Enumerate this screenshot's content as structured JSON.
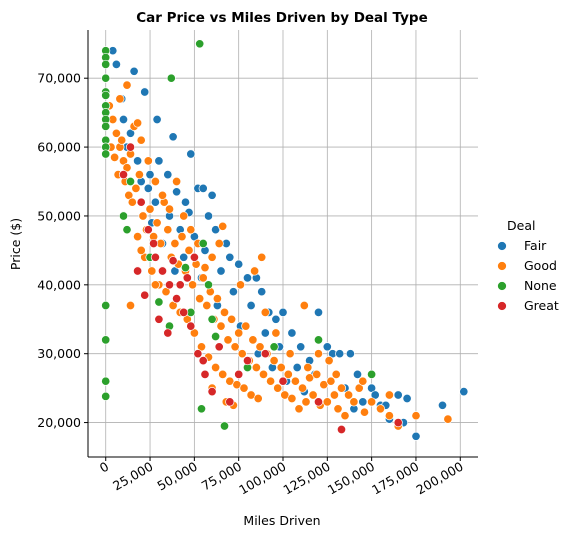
{
  "chart_data": {
    "type": "scatter",
    "title": "Car Price vs Miles Driven by Deal Type",
    "xlabel": "Miles Driven",
    "ylabel": "Price ($)",
    "xlim": [
      -10000,
      210000
    ],
    "ylim": [
      15000,
      77000
    ],
    "x_ticks": [
      0,
      25000,
      50000,
      75000,
      100000,
      125000,
      150000,
      175000,
      200000
    ],
    "x_tick_labels": [
      "0",
      "25,000",
      "50,000",
      "75,000",
      "100,000",
      "125,000",
      "150,000",
      "175,000",
      "200,000"
    ],
    "y_ticks": [
      20000,
      30000,
      40000,
      50000,
      60000,
      70000
    ],
    "y_tick_labels": [
      "20,000",
      "30,000",
      "40,000",
      "50,000",
      "60,000",
      "70,000"
    ],
    "grid": true,
    "legend": {
      "title": "Deal",
      "placement": "right"
    },
    "series": [
      {
        "name": "Fair",
        "color": "#1f77b4",
        "points": [
          [
            4000,
            74000
          ],
          [
            6000,
            72000
          ],
          [
            9000,
            67000
          ],
          [
            16000,
            71000
          ],
          [
            22000,
            68000
          ],
          [
            29000,
            64000
          ],
          [
            38000,
            61500
          ],
          [
            48000,
            59000
          ],
          [
            52000,
            54000
          ],
          [
            55000,
            54000
          ],
          [
            60000,
            53000
          ],
          [
            58000,
            50000
          ],
          [
            45000,
            52000
          ],
          [
            40000,
            53500
          ],
          [
            30000,
            58000
          ],
          [
            25000,
            56000
          ],
          [
            20000,
            55000
          ],
          [
            35000,
            56000
          ],
          [
            62000,
            48000
          ],
          [
            68000,
            46000
          ],
          [
            70000,
            44000
          ],
          [
            75000,
            43000
          ],
          [
            80000,
            41000
          ],
          [
            85000,
            41000
          ],
          [
            88000,
            39000
          ],
          [
            92000,
            36000
          ],
          [
            96000,
            35000
          ],
          [
            100000,
            36000
          ],
          [
            105000,
            33000
          ],
          [
            110000,
            31000
          ],
          [
            115000,
            29000
          ],
          [
            120000,
            36000
          ],
          [
            125000,
            31000
          ],
          [
            128000,
            30000
          ],
          [
            132000,
            30000
          ],
          [
            138000,
            30000
          ],
          [
            142000,
            27000
          ],
          [
            150000,
            25000
          ],
          [
            152000,
            24000
          ],
          [
            155000,
            22500
          ],
          [
            158000,
            22500
          ],
          [
            165000,
            24000
          ],
          [
            170000,
            23500
          ],
          [
            175000,
            18000
          ],
          [
            190000,
            22500
          ],
          [
            202000,
            24500
          ],
          [
            160000,
            20500
          ],
          [
            145000,
            23000
          ],
          [
            135000,
            25000
          ],
          [
            118000,
            27000
          ],
          [
            108000,
            28000
          ],
          [
            98000,
            31000
          ],
          [
            90000,
            33000
          ],
          [
            82000,
            37000
          ],
          [
            72000,
            39000
          ],
          [
            65000,
            42000
          ],
          [
            56000,
            45000
          ],
          [
            50000,
            47000
          ],
          [
            42000,
            48000
          ],
          [
            36000,
            50000
          ],
          [
            28000,
            52000
          ],
          [
            24000,
            54000
          ],
          [
            18000,
            58000
          ],
          [
            12000,
            60000
          ],
          [
            14000,
            62000
          ],
          [
            10000,
            64000
          ],
          [
            26000,
            49000
          ],
          [
            32000,
            46000
          ],
          [
            44000,
            44000
          ],
          [
            54000,
            41000
          ],
          [
            63000,
            37000
          ],
          [
            76000,
            34000
          ],
          [
            86000,
            30000
          ],
          [
            94000,
            28000
          ],
          [
            102000,
            26000
          ],
          [
            112000,
            24500
          ],
          [
            140000,
            22000
          ],
          [
            168000,
            20000
          ],
          [
            47000,
            50500
          ],
          [
            39000,
            42000
          ]
        ]
      },
      {
        "name": "Good",
        "color": "#ff7f0e",
        "points": [
          [
            2000,
            66000
          ],
          [
            4000,
            64000
          ],
          [
            6000,
            62000
          ],
          [
            8000,
            60000
          ],
          [
            10000,
            58000
          ],
          [
            12000,
            57000
          ],
          [
            14000,
            59000
          ],
          [
            16000,
            63000
          ],
          [
            3000,
            60000
          ],
          [
            5000,
            58500
          ],
          [
            7000,
            56000
          ],
          [
            9000,
            61000
          ],
          [
            11000,
            55000
          ],
          [
            13000,
            53000
          ],
          [
            15000,
            52000
          ],
          [
            17000,
            54000
          ],
          [
            19000,
            56000
          ],
          [
            21000,
            50000
          ],
          [
            23000,
            48000
          ],
          [
            25000,
            51000
          ],
          [
            27000,
            47000
          ],
          [
            29000,
            49000
          ],
          [
            31000,
            46000
          ],
          [
            33000,
            52000
          ],
          [
            35000,
            48000
          ],
          [
            37000,
            44000
          ],
          [
            39000,
            46000
          ],
          [
            41000,
            43000
          ],
          [
            43000,
            47000
          ],
          [
            45000,
            42000
          ],
          [
            47000,
            45000
          ],
          [
            49000,
            40000
          ],
          [
            51000,
            43000
          ],
          [
            53000,
            38000
          ],
          [
            55000,
            41000
          ],
          [
            57000,
            37000
          ],
          [
            59000,
            39000
          ],
          [
            61000,
            35000
          ],
          [
            63000,
            38000
          ],
          [
            65000,
            34000
          ],
          [
            67000,
            36000
          ],
          [
            69000,
            32000
          ],
          [
            71000,
            35000
          ],
          [
            73000,
            31000
          ],
          [
            75000,
            33000
          ],
          [
            77000,
            30000
          ],
          [
            79000,
            34000
          ],
          [
            81000,
            29000
          ],
          [
            83000,
            32000
          ],
          [
            85000,
            28000
          ],
          [
            87000,
            31000
          ],
          [
            89000,
            27000
          ],
          [
            91000,
            30000
          ],
          [
            93000,
            26000
          ],
          [
            95000,
            29000
          ],
          [
            97000,
            25000
          ],
          [
            99000,
            28000
          ],
          [
            101000,
            24000
          ],
          [
            103000,
            27000
          ],
          [
            105000,
            23500
          ],
          [
            107000,
            26000
          ],
          [
            109000,
            22000
          ],
          [
            111000,
            25000
          ],
          [
            113000,
            23000
          ],
          [
            115000,
            26500
          ],
          [
            117000,
            24000
          ],
          [
            119000,
            27000
          ],
          [
            121000,
            22500
          ],
          [
            123000,
            25500
          ],
          [
            125000,
            23000
          ],
          [
            127000,
            26000
          ],
          [
            129000,
            24000
          ],
          [
            131000,
            22000
          ],
          [
            133000,
            25000
          ],
          [
            135000,
            21000
          ],
          [
            137000,
            24000
          ],
          [
            140000,
            23000
          ],
          [
            143000,
            25000
          ],
          [
            146000,
            21500
          ],
          [
            150000,
            23000
          ],
          [
            155000,
            22000
          ],
          [
            160000,
            21000
          ],
          [
            165000,
            19500
          ],
          [
            175000,
            21000
          ],
          [
            193000,
            20500
          ],
          [
            18000,
            47000
          ],
          [
            22000,
            44000
          ],
          [
            26000,
            42000
          ],
          [
            30000,
            40000
          ],
          [
            34000,
            39000
          ],
          [
            38000,
            37000
          ],
          [
            42000,
            36000
          ],
          [
            46000,
            35000
          ],
          [
            50000,
            33000
          ],
          [
            54000,
            31000
          ],
          [
            58000,
            29500
          ],
          [
            62000,
            28000
          ],
          [
            66000,
            27000
          ],
          [
            70000,
            26000
          ],
          [
            74000,
            25500
          ],
          [
            78000,
            25000
          ],
          [
            82000,
            24000
          ],
          [
            86000,
            23500
          ],
          [
            68000,
            23000
          ],
          [
            72000,
            22500
          ],
          [
            56000,
            42500
          ],
          [
            60000,
            44000
          ],
          [
            64000,
            46000
          ],
          [
            66000,
            48500
          ],
          [
            76000,
            40000
          ],
          [
            84000,
            42000
          ],
          [
            88000,
            44000
          ],
          [
            12000,
            69000
          ],
          [
            8000,
            67000
          ],
          [
            18000,
            63500
          ],
          [
            20000,
            61000
          ],
          [
            24000,
            58000
          ],
          [
            28000,
            55000
          ],
          [
            32000,
            53000
          ],
          [
            36000,
            51000
          ],
          [
            40000,
            55000
          ],
          [
            44000,
            50000
          ],
          [
            48000,
            48000
          ],
          [
            52000,
            46000
          ],
          [
            14000,
            37000
          ],
          [
            20000,
            45000
          ],
          [
            28000,
            40000
          ],
          [
            60000,
            25000
          ],
          [
            90000,
            36000
          ],
          [
            96000,
            33000
          ],
          [
            104000,
            30000
          ],
          [
            112000,
            37000
          ],
          [
            114000,
            28000
          ],
          [
            120000,
            30000
          ],
          [
            126000,
            29000
          ],
          [
            130000,
            27000
          ],
          [
            145000,
            26000
          ],
          [
            160000,
            24000
          ]
        ]
      },
      {
        "name": "None",
        "color": "#2ca02c",
        "points": [
          [
            0,
            74000
          ],
          [
            0,
            73000
          ],
          [
            0,
            72000
          ],
          [
            0,
            70000
          ],
          [
            0,
            68000
          ],
          [
            0,
            67500
          ],
          [
            0,
            66000
          ],
          [
            0,
            65000
          ],
          [
            0,
            64000
          ],
          [
            0,
            63000
          ],
          [
            0,
            61000
          ],
          [
            0,
            60000
          ],
          [
            0,
            59000
          ],
          [
            0,
            37000
          ],
          [
            0,
            32000
          ],
          [
            0,
            26000
          ],
          [
            0,
            23800
          ],
          [
            53000,
            75000
          ],
          [
            37000,
            70000
          ],
          [
            14000,
            55000
          ],
          [
            10000,
            50000
          ],
          [
            12000,
            48000
          ],
          [
            25000,
            44000
          ],
          [
            30000,
            37500
          ],
          [
            36000,
            34000
          ],
          [
            45000,
            42500
          ],
          [
            55000,
            46000
          ],
          [
            58000,
            40000
          ],
          [
            60000,
            35000
          ],
          [
            62000,
            32500
          ],
          [
            54000,
            22000
          ],
          [
            67000,
            19500
          ],
          [
            95000,
            31000
          ],
          [
            120000,
            32000
          ],
          [
            150000,
            27000
          ],
          [
            80000,
            28000
          ],
          [
            40000,
            38000
          ],
          [
            48000,
            36000
          ]
        ]
      },
      {
        "name": "Great",
        "color": "#d62728",
        "points": [
          [
            10000,
            56000
          ],
          [
            14000,
            60000
          ],
          [
            20000,
            52000
          ],
          [
            24000,
            48000
          ],
          [
            28000,
            44000
          ],
          [
            32000,
            42000
          ],
          [
            36000,
            40000
          ],
          [
            40000,
            38000
          ],
          [
            44000,
            36000
          ],
          [
            48000,
            34000
          ],
          [
            52000,
            30000
          ],
          [
            56000,
            27000
          ],
          [
            60000,
            24500
          ],
          [
            70000,
            23000
          ],
          [
            35000,
            33000
          ],
          [
            30000,
            35000
          ],
          [
            42000,
            40000
          ],
          [
            46000,
            41000
          ],
          [
            50000,
            44000
          ],
          [
            27000,
            46000
          ],
          [
            22000,
            38500
          ],
          [
            18000,
            42000
          ],
          [
            55000,
            29000
          ],
          [
            64000,
            31000
          ],
          [
            80000,
            29000
          ],
          [
            100000,
            26000
          ],
          [
            120000,
            23000
          ],
          [
            133000,
            19000
          ],
          [
            165000,
            20000
          ],
          [
            90000,
            30000
          ],
          [
            75000,
            27000
          ],
          [
            38000,
            43500
          ]
        ]
      }
    ]
  }
}
